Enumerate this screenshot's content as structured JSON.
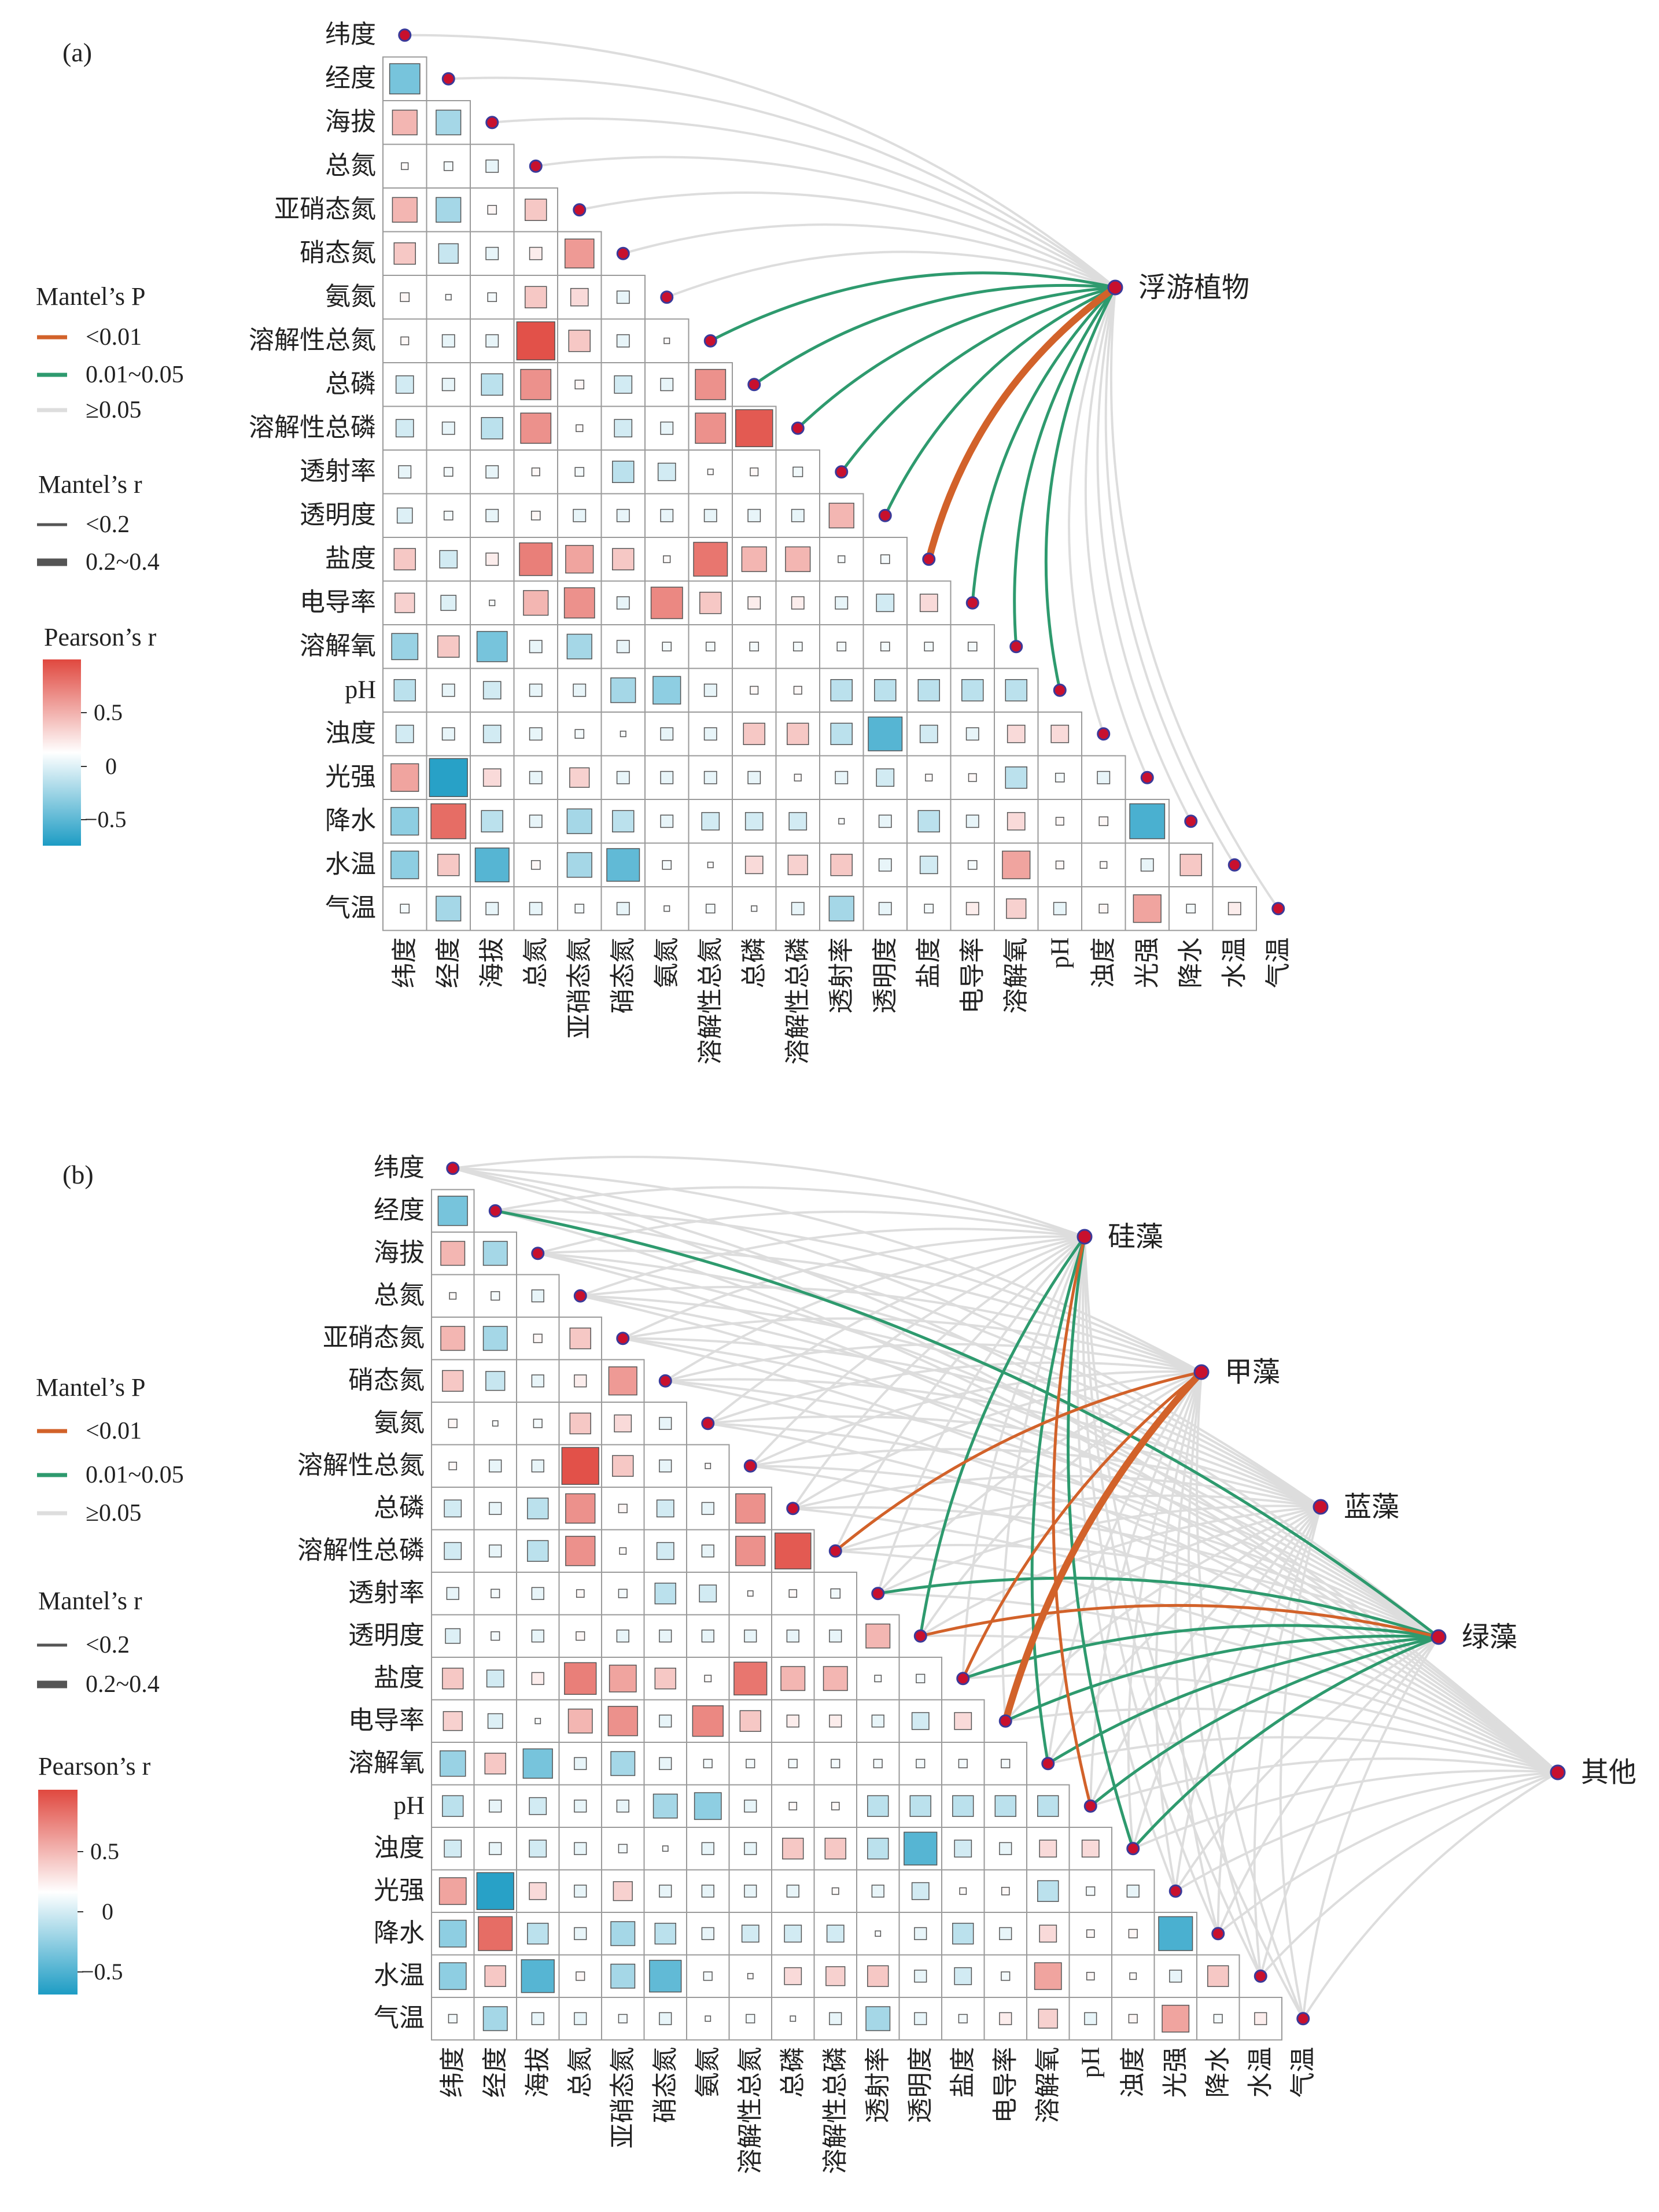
{
  "chart_data": [
    {
      "panel": "(a)",
      "type": "heatmap",
      "variables": [
        "纬度",
        "经度",
        "海拔",
        "总氮",
        "亚硝态氮",
        "硝态氮",
        "氨氮",
        "溶解性总氮",
        "总磷",
        "溶解性总磷",
        "透射率",
        "透明度",
        "盐度",
        "电导率",
        "溶解氧",
        "pH",
        "浊度",
        "光强",
        "降水",
        "水温",
        "气温"
      ],
      "groups": [
        "浮游植物"
      ],
      "pearson_lower_triangle": [
        [],
        [
          -0.6
        ],
        [
          0.4,
          -0.4
        ],
        [
          0.03,
          -0.05,
          -0.1
        ],
        [
          0.4,
          -0.4,
          0.05,
          0.3
        ],
        [
          0.3,
          -0.25,
          -0.1,
          0.1,
          0.55
        ],
        [
          0.05,
          -0.02,
          -0.05,
          0.3,
          0.2,
          -0.1
        ],
        [
          0.04,
          -0.1,
          -0.1,
          0.95,
          0.3,
          -0.1,
          0.02
        ],
        [
          -0.2,
          -0.1,
          -0.3,
          0.6,
          0.05,
          -0.2,
          -0.1,
          0.6
        ],
        [
          -0.2,
          -0.1,
          -0.3,
          0.6,
          0.03,
          -0.2,
          -0.1,
          0.6,
          0.9
        ],
        [
          -0.1,
          -0.05,
          -0.1,
          0.04,
          -0.05,
          -0.3,
          -0.2,
          0.02,
          0.04,
          -0.06
        ],
        [
          -0.15,
          -0.05,
          -0.1,
          0.05,
          -0.1,
          -0.1,
          -0.1,
          -0.1,
          -0.1,
          -0.1,
          0.4
        ],
        [
          0.3,
          -0.2,
          0.1,
          0.7,
          0.5,
          0.3,
          0.03,
          0.75,
          0.4,
          0.4,
          -0.03,
          -0.05
        ],
        [
          0.25,
          -0.15,
          -0.02,
          0.4,
          0.6,
          -0.1,
          0.65,
          0.3,
          0.1,
          0.1,
          -0.1,
          -0.2,
          0.2
        ],
        [
          -0.45,
          0.3,
          -0.6,
          -0.1,
          -0.4,
          -0.1,
          -0.05,
          -0.05,
          -0.05,
          -0.05,
          -0.05,
          -0.05,
          -0.05,
          -0.05
        ],
        [
          -0.3,
          -0.1,
          -0.2,
          -0.1,
          -0.1,
          -0.4,
          -0.5,
          -0.1,
          0.04,
          0.04,
          -0.3,
          -0.3,
          -0.3,
          -0.3,
          -0.3
        ],
        [
          -0.2,
          -0.1,
          -0.2,
          -0.1,
          -0.05,
          -0.02,
          -0.1,
          -0.1,
          0.3,
          0.3,
          -0.3,
          -0.75,
          -0.2,
          -0.1,
          0.2,
          0.2
        ],
        [
          0.5,
          -0.95,
          0.2,
          -0.1,
          0.25,
          -0.1,
          -0.1,
          -0.1,
          -0.1,
          0.03,
          -0.1,
          -0.2,
          0.03,
          0.04,
          -0.3,
          -0.05,
          -0.1
        ],
        [
          -0.5,
          0.8,
          -0.3,
          -0.1,
          -0.4,
          -0.3,
          -0.1,
          -0.2,
          -0.2,
          -0.2,
          -0.02,
          -0.1,
          -0.3,
          -0.1,
          0.2,
          0.04,
          0.05,
          -0.8
        ],
        [
          -0.5,
          0.3,
          -0.75,
          0.05,
          -0.4,
          -0.7,
          -0.05,
          0.02,
          0.2,
          0.25,
          0.3,
          -0.1,
          -0.2,
          -0.05,
          0.5,
          0.04,
          0.03,
          -0.1,
          0.3
        ],
        [
          -0.05,
          -0.4,
          -0.1,
          -0.1,
          -0.05,
          -0.1,
          -0.02,
          -0.05,
          -0.02,
          -0.1,
          -0.4,
          -0.1,
          -0.05,
          0.1,
          0.25,
          -0.1,
          0.05,
          0.5,
          -0.05,
          0.1
        ]
      ],
      "mantel_links": [
        {
          "group": "浮游植物",
          "var": "纬度",
          "p": "≥0.05",
          "r": "<0.2"
        },
        {
          "group": "浮游植物",
          "var": "经度",
          "p": "≥0.05",
          "r": "<0.2"
        },
        {
          "group": "浮游植物",
          "var": "海拔",
          "p": "≥0.05",
          "r": "<0.2"
        },
        {
          "group": "浮游植物",
          "var": "总氮",
          "p": "≥0.05",
          "r": "<0.2"
        },
        {
          "group": "浮游植物",
          "var": "亚硝态氮",
          "p": "≥0.05",
          "r": "<0.2"
        },
        {
          "group": "浮游植物",
          "var": "硝态氮",
          "p": "≥0.05",
          "r": "<0.2"
        },
        {
          "group": "浮游植物",
          "var": "氨氮",
          "p": "≥0.05",
          "r": "<0.2"
        },
        {
          "group": "浮游植物",
          "var": "溶解性总氮",
          "p": "0.01~0.05",
          "r": "<0.2"
        },
        {
          "group": "浮游植物",
          "var": "总磷",
          "p": "0.01~0.05",
          "r": "<0.2"
        },
        {
          "group": "浮游植物",
          "var": "溶解性总磷",
          "p": "0.01~0.05",
          "r": "<0.2"
        },
        {
          "group": "浮游植物",
          "var": "透射率",
          "p": "0.01~0.05",
          "r": "<0.2"
        },
        {
          "group": "浮游植物",
          "var": "透明度",
          "p": "0.01~0.05",
          "r": "<0.2"
        },
        {
          "group": "浮游植物",
          "var": "盐度",
          "p": "<0.01",
          "r": "0.2~0.4"
        },
        {
          "group": "浮游植物",
          "var": "电导率",
          "p": "0.01~0.05",
          "r": "<0.2"
        },
        {
          "group": "浮游植物",
          "var": "溶解氧",
          "p": "0.01~0.05",
          "r": "<0.2"
        },
        {
          "group": "浮游植物",
          "var": "pH",
          "p": "0.01~0.05",
          "r": "<0.2"
        },
        {
          "group": "浮游植物",
          "var": "浊度",
          "p": "≥0.05",
          "r": "<0.2"
        },
        {
          "group": "浮游植物",
          "var": "光强",
          "p": "≥0.05",
          "r": "<0.2"
        },
        {
          "group": "浮游植物",
          "var": "降水",
          "p": "≥0.05",
          "r": "<0.2"
        },
        {
          "group": "浮游植物",
          "var": "水温",
          "p": "≥0.05",
          "r": "<0.2"
        },
        {
          "group": "浮游植物",
          "var": "气温",
          "p": "≥0.05",
          "r": "<0.2"
        }
      ]
    },
    {
      "panel": "(b)",
      "type": "heatmap",
      "variables": [
        "纬度",
        "经度",
        "海拔",
        "总氮",
        "亚硝态氮",
        "硝态氮",
        "氨氮",
        "溶解性总氮",
        "总磷",
        "溶解性总磷",
        "透射率",
        "透明度",
        "盐度",
        "电导率",
        "溶解氧",
        "pH",
        "浊度",
        "光强",
        "降水",
        "水温",
        "气温"
      ],
      "groups": [
        "硅藻",
        "甲藻",
        "蓝藻",
        "绿藻",
        "其他"
      ],
      "pearson_lower_triangle": "same as panel (a)",
      "mantel_links": [
        {
          "group": "硅藻",
          "var": "透明度",
          "p": "0.01~0.05",
          "r": "<0.2"
        },
        {
          "group": "硅藻",
          "var": "溶解氧",
          "p": "0.01~0.05",
          "r": "<0.2"
        },
        {
          "group": "硅藻",
          "var": "浊度",
          "p": "0.01~0.05",
          "r": "<0.2"
        },
        {
          "group": "硅藻",
          "var": "pH",
          "p": "<0.01",
          "r": "<0.2"
        },
        {
          "group": "甲藻",
          "var": "盐度",
          "p": "<0.01",
          "r": "<0.2"
        },
        {
          "group": "甲藻",
          "var": "电导率",
          "p": "<0.01",
          "r": "0.2~0.4"
        },
        {
          "group": "甲藻",
          "var": "溶解性总磷",
          "p": "<0.01",
          "r": "<0.2"
        },
        {
          "group": "绿藻",
          "var": "经度",
          "p": "0.01~0.05",
          "r": "<0.2"
        },
        {
          "group": "绿藻",
          "var": "透射率",
          "p": "0.01~0.05",
          "r": "<0.2"
        },
        {
          "group": "绿藻",
          "var": "盐度",
          "p": "0.01~0.05",
          "r": "<0.2"
        },
        {
          "group": "绿藻",
          "var": "电导率",
          "p": "0.01~0.05",
          "r": "<0.2"
        },
        {
          "group": "绿藻",
          "var": "溶解氧",
          "p": "0.01~0.05",
          "r": "<0.2"
        },
        {
          "group": "绿藻",
          "var": "pH",
          "p": "0.01~0.05",
          "r": "<0.2"
        },
        {
          "group": "绿藻",
          "var": "浊度",
          "p": "0.01~0.05",
          "r": "<0.2"
        },
        {
          "group": "绿藻",
          "var": "透明度",
          "p": "<0.01",
          "r": "<0.2"
        }
      ]
    }
  ],
  "panels": [
    {
      "label": "(a)",
      "legend": {
        "mantel_p_title": "Mantel’s P",
        "mantel_p_items": [
          "<0.01",
          "0.01~0.05",
          "≥0.05"
        ],
        "mantel_r_title": "Mantel’s r",
        "mantel_r_items": [
          "<0.2",
          "0.2~0.4"
        ],
        "pearson_title": "Pearson’s r",
        "pearson_ticks": [
          "0.5",
          "0",
          "−0.5"
        ]
      }
    },
    {
      "label": "(b)",
      "legend": {
        "mantel_p_title": "Mantel’s P",
        "mantel_p_items": [
          "<0.01",
          "0.01~0.05",
          "≥0.05"
        ],
        "mantel_r_title": "Mantel’s r",
        "mantel_r_items": [
          "<0.2",
          "0.2~0.4"
        ],
        "pearson_title": "Pearson’s r",
        "pearson_ticks": [
          "0.5",
          "0",
          "−0.5"
        ]
      }
    }
  ],
  "colors": {
    "p_lt_001": "#d2622a",
    "p_001_005": "#2e9a6e",
    "p_ge_005": "#dddddd",
    "pearson_high": "#e0483f",
    "pearson_mid": "#ffffff",
    "pearson_low": "#1d9cc4",
    "node": "#c8102e",
    "node_stroke": "#3a3a9a",
    "grid": "#9a9a9a"
  }
}
